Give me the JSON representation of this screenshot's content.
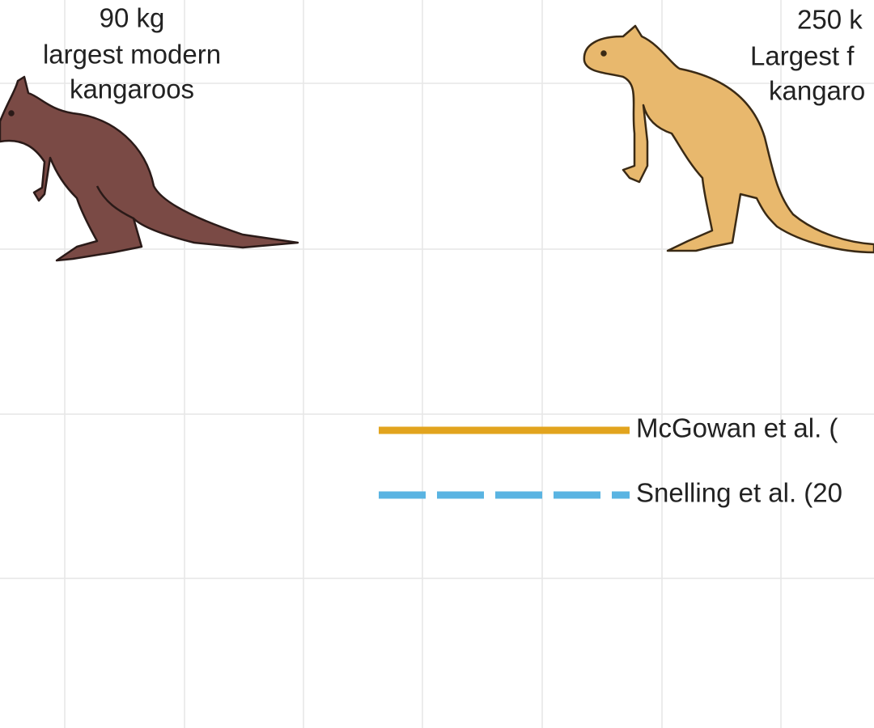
{
  "annotations": [
    {
      "lines": [
        "90 kg",
        "largest modern",
        "kangaroos"
      ]
    },
    {
      "lines": [
        "250 k",
        "Largest f",
        "kangaro"
      ]
    }
  ],
  "legend": [
    {
      "name": "McGowan et al. (",
      "color": "#e2a41e",
      "dashed": false
    },
    {
      "name": "Snelling et al. (20",
      "color": "#5ab4e2",
      "dashed": true
    }
  ]
}
